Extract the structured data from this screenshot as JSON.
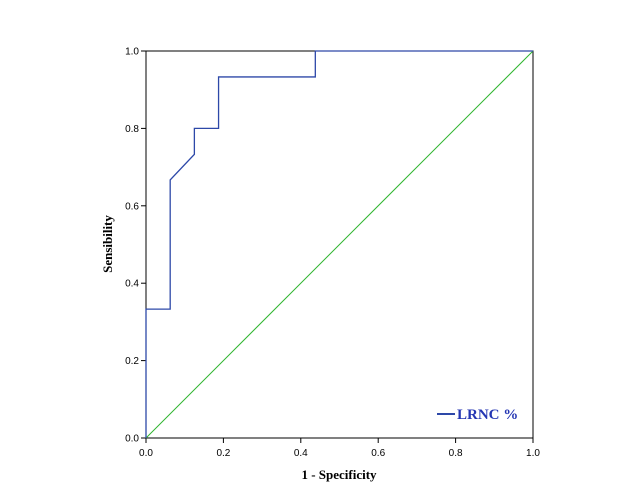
{
  "chart_data": {
    "type": "line",
    "xlabel": "1 - Specificity",
    "ylabel": "Sensibility",
    "xlim": [
      0,
      1
    ],
    "ylim": [
      0,
      1
    ],
    "x_ticks": [
      "0.0",
      "0.2",
      "0.4",
      "0.6",
      "0.8",
      "1.0"
    ],
    "y_ticks": [
      "0.0",
      "0.2",
      "0.4",
      "0.6",
      "0.8",
      "1.0"
    ],
    "grid": false,
    "legend_placement": "bottom-right",
    "series": [
      {
        "name": "LRNC %",
        "color": "#2d48a8",
        "points": [
          [
            0.0,
            0.0
          ],
          [
            0.0,
            0.333
          ],
          [
            0.0625,
            0.333
          ],
          [
            0.0625,
            0.667
          ],
          [
            0.125,
            0.733
          ],
          [
            0.125,
            0.8
          ],
          [
            0.1875,
            0.8
          ],
          [
            0.1875,
            0.933
          ],
          [
            0.4375,
            0.933
          ],
          [
            0.4375,
            1.0
          ],
          [
            1.0,
            1.0
          ]
        ]
      }
    ],
    "reference_line": {
      "color": "#2fb52f",
      "points": [
        [
          0,
          0
        ],
        [
          1,
          1
        ]
      ]
    }
  }
}
